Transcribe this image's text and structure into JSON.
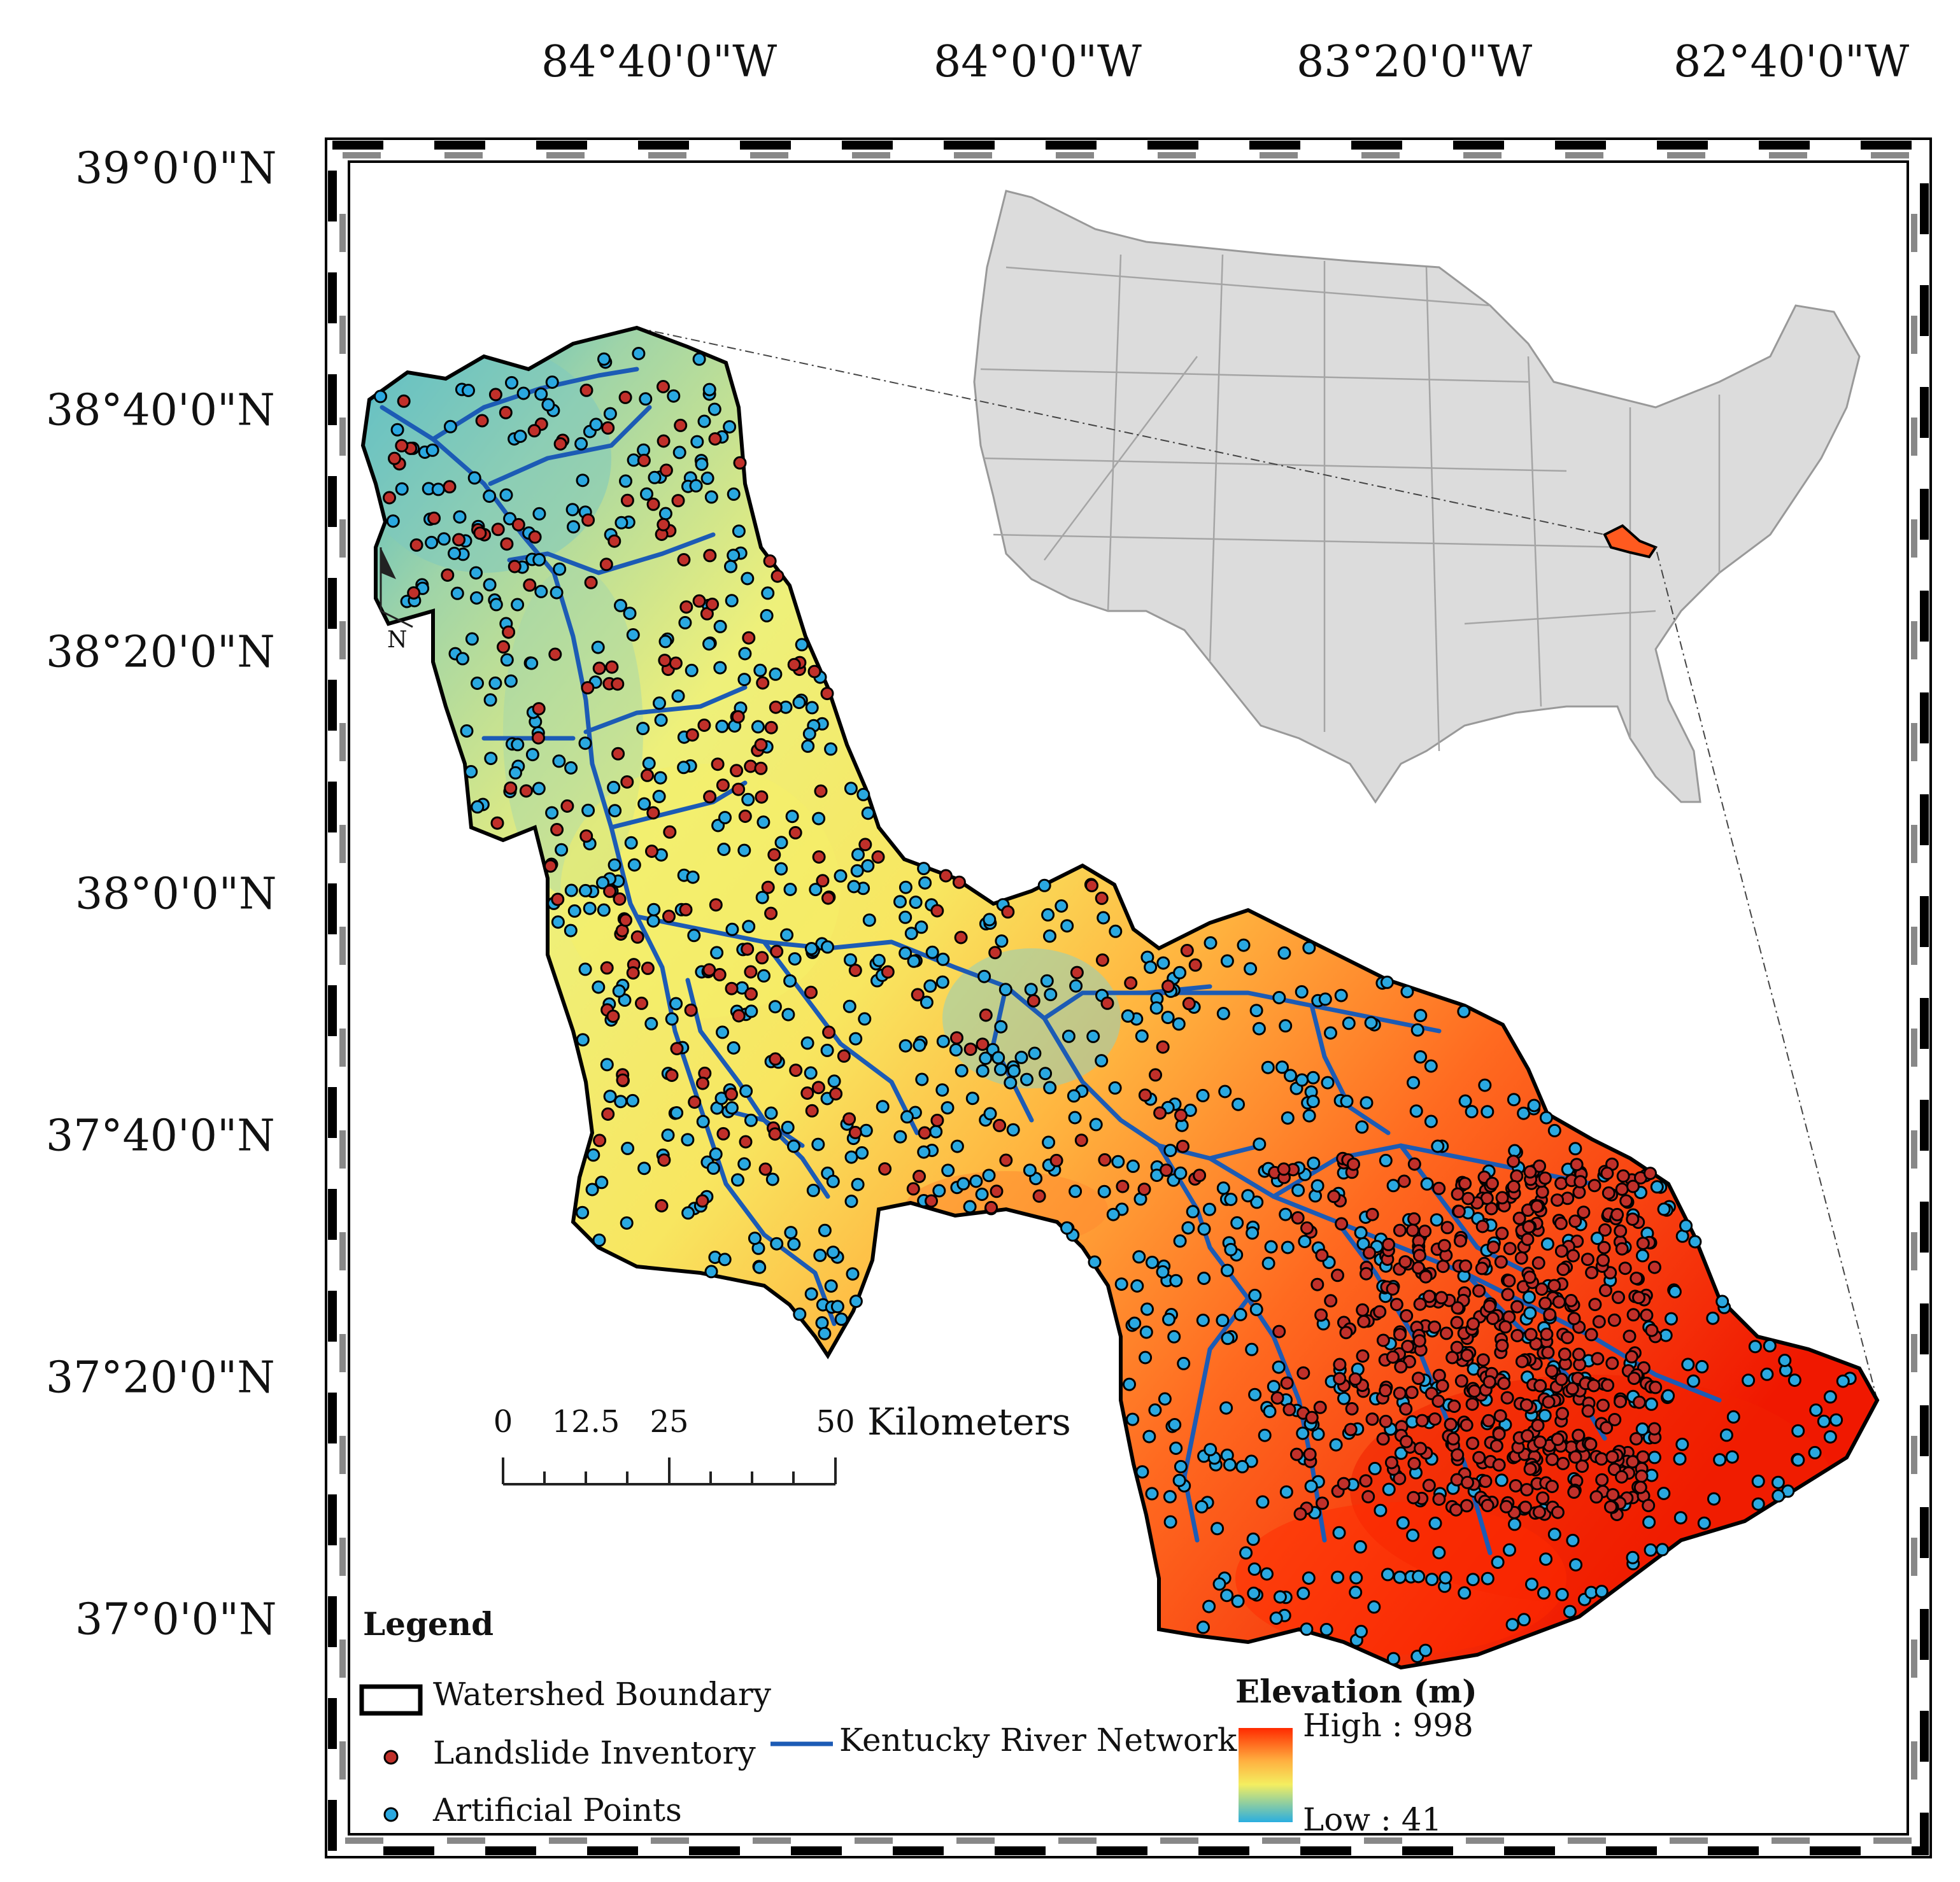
{
  "graticule": {
    "longitudes": [
      "84°40'0\"W",
      "84°0'0\"W",
      "83°20'0\"W",
      "82°40'0\"W"
    ],
    "latitudes": [
      "39°0'0\"N",
      "38°40'0\"N",
      "38°20'0\"N",
      "38°0'0\"N",
      "37°40'0\"N",
      "37°20'0\"N",
      "37°0'0\"N"
    ]
  },
  "north_arrow": {
    "label": "N"
  },
  "scale_bar": {
    "ticks": [
      "0",
      "12.5",
      "25",
      "50"
    ],
    "unit": "Kilometers"
  },
  "legend": {
    "title": "Legend",
    "items": [
      {
        "label": "Watershed Boundary",
        "symbol": "outline",
        "color": "#000000"
      },
      {
        "label": "Landslide Inventory",
        "symbol": "dot",
        "color": "#c0302a"
      },
      {
        "label": "Artificial Points",
        "symbol": "dot",
        "color": "#2aa8e0"
      },
      {
        "label": "Kentucky River Network",
        "symbol": "line",
        "color": "#1c5bb5"
      }
    ],
    "elevation": {
      "title": "Elevation (m)",
      "high": "High : 998",
      "low": "Low : 41",
      "colors": [
        "#ff2a00",
        "#ffe040",
        "#f2ee60",
        "#32b2d8"
      ]
    }
  },
  "inset": {
    "highlight_color": "#ff5a1f",
    "state_fill": "#dcdcdc"
  }
}
